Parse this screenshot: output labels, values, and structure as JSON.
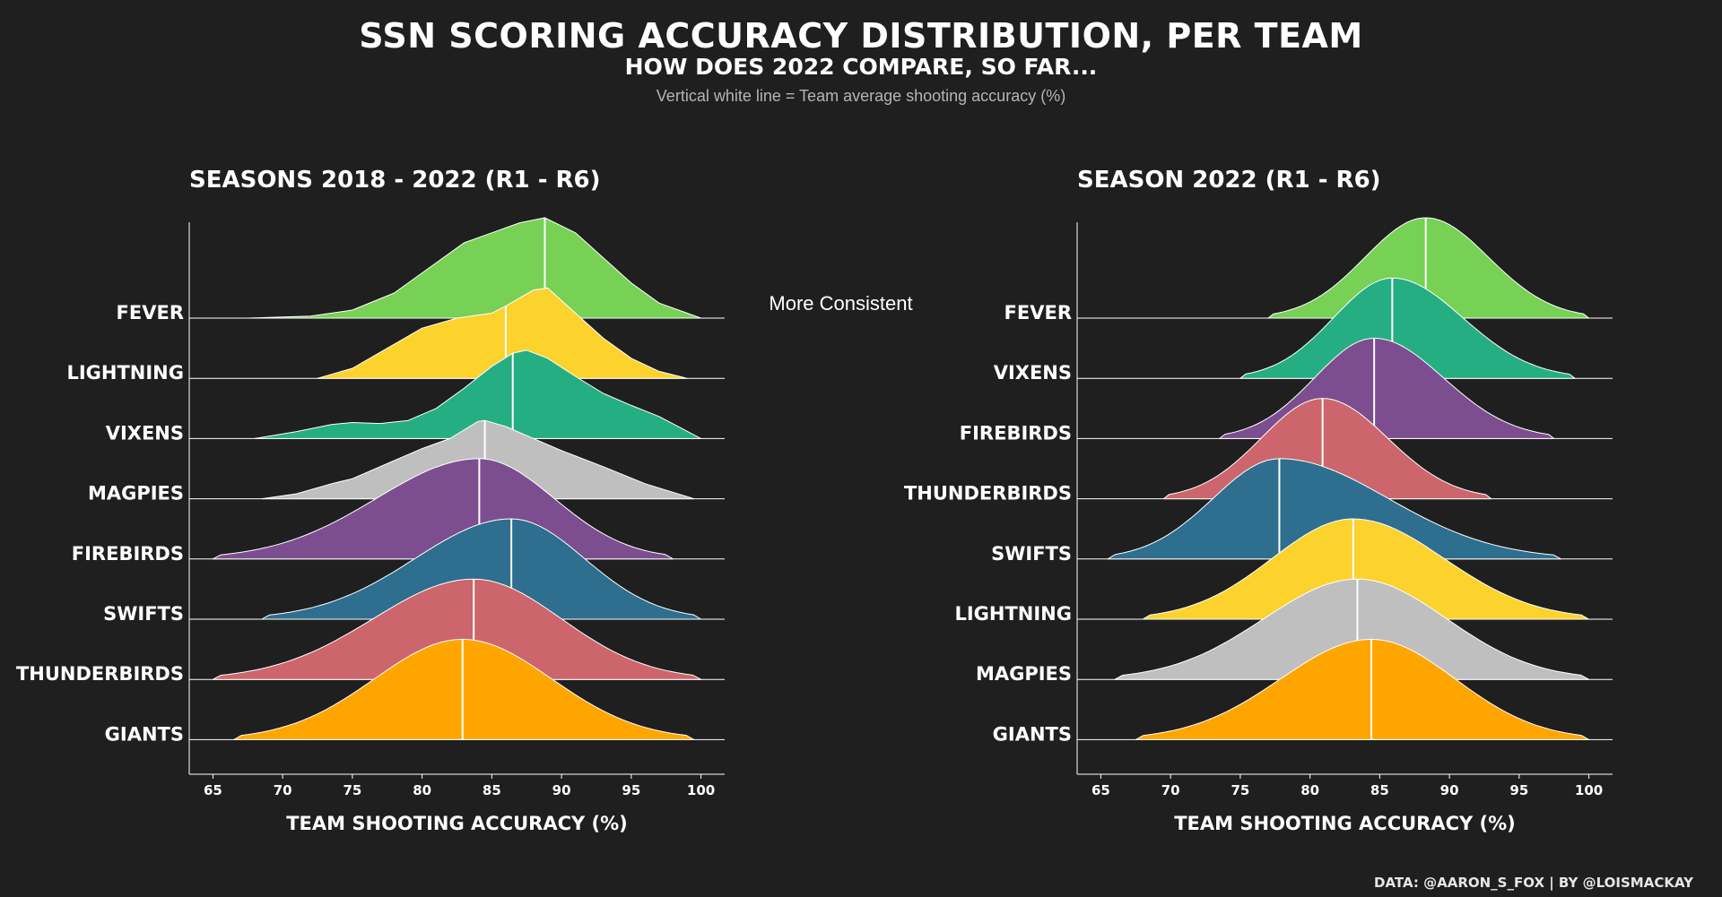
{
  "header": {
    "title": "SSN SCORING ACCURACY DISTRIBUTION, PER TEAM",
    "subtitle": "HOW DOES 2022 COMPARE, SO FAR...",
    "caption": "Vertical white line = Team average shooting accuracy (%)"
  },
  "annotation": "More Consistent",
  "credit": "DATA: @AARON_S_FOX | BY @LOISMACKAY",
  "chart_data": [
    {
      "type": "area",
      "title": "SEASONS 2018 - 2022 (R1 - R6)",
      "xlabel": "TEAM SHOOTING ACCURACY (%)",
      "xlim": [
        63.3,
        101.7
      ],
      "xticks": [
        65,
        70,
        75,
        80,
        85,
        90,
        95,
        100
      ],
      "series": [
        {
          "name": "FEVER",
          "color": "#76d155",
          "mean": 88.8,
          "range": [
            67.5,
            100
          ],
          "x": [
            67.5,
            72,
            75,
            78,
            81,
            83,
            85,
            87,
            88.8,
            91,
            93,
            95,
            97,
            100
          ],
          "y": [
            0,
            0.02,
            0.08,
            0.25,
            0.55,
            0.75,
            0.85,
            0.95,
            1.0,
            0.85,
            0.6,
            0.35,
            0.15,
            0
          ]
        },
        {
          "name": "LIGHTNING",
          "color": "#fcd22d",
          "mean": 86.0,
          "range": [
            72.5,
            99
          ],
          "x": [
            72.5,
            75,
            77.5,
            80,
            82.5,
            85,
            86,
            88,
            89,
            91,
            93,
            95,
            97,
            99
          ],
          "y": [
            0,
            0.1,
            0.3,
            0.5,
            0.6,
            0.65,
            0.72,
            0.88,
            0.9,
            0.65,
            0.4,
            0.2,
            0.07,
            0
          ]
        },
        {
          "name": "VIXENS",
          "color": "#26ae83",
          "mean": 86.5,
          "range": [
            68,
            100
          ],
          "x": [
            68,
            71,
            73.5,
            75,
            77,
            79,
            81,
            83,
            85,
            86.5,
            87.5,
            89,
            91,
            93,
            95,
            97,
            100
          ],
          "y": [
            0,
            0.07,
            0.14,
            0.16,
            0.15,
            0.18,
            0.3,
            0.5,
            0.72,
            0.85,
            0.88,
            0.8,
            0.62,
            0.45,
            0.33,
            0.22,
            0
          ]
        },
        {
          "name": "MAGPIES",
          "color": "#bfbfbf",
          "mean": 84.5,
          "range": [
            68.5,
            99.5
          ],
          "x": [
            68.5,
            71,
            73.5,
            75,
            78,
            80,
            82,
            84,
            84.5,
            86,
            88,
            90,
            93,
            96,
            99.5
          ],
          "y": [
            0,
            0.05,
            0.15,
            0.2,
            0.38,
            0.5,
            0.6,
            0.77,
            0.78,
            0.72,
            0.6,
            0.48,
            0.32,
            0.15,
            0
          ]
        },
        {
          "name": "FIREBIRDS",
          "color": "#7c4e8f",
          "mean": 84.1,
          "range": [
            65,
            98
          ]
        },
        {
          "name": "SWIFTS",
          "color": "#2e6e8e",
          "mean": 86.4,
          "range": [
            68.5,
            100
          ]
        },
        {
          "name": "THUNDERBIRDS",
          "color": "#cc666c",
          "mean": 83.7,
          "range": [
            65,
            100
          ]
        },
        {
          "name": "GIANTS",
          "color": "#ffa500",
          "mean": 82.9,
          "range": [
            66.5,
            99.5
          ]
        }
      ]
    },
    {
      "type": "area",
      "title": "SEASON 2022 (R1 - R6)",
      "xlabel": "TEAM SHOOTING ACCURACY (%)",
      "xlim": [
        63.3,
        101.7
      ],
      "xticks": [
        65,
        70,
        75,
        80,
        85,
        90,
        95,
        100
      ],
      "series": [
        {
          "name": "FEVER",
          "color": "#76d155",
          "mean": 88.3,
          "range": [
            77,
            100
          ]
        },
        {
          "name": "VIXENS",
          "color": "#26ae83",
          "mean": 85.9,
          "range": [
            75,
            99
          ]
        },
        {
          "name": "FIREBIRDS",
          "color": "#7c4e8f",
          "mean": 84.6,
          "range": [
            73.5,
            97.5
          ]
        },
        {
          "name": "THUNDERBIRDS",
          "color": "#cc666c",
          "mean": 80.9,
          "range": [
            69.5,
            93
          ]
        },
        {
          "name": "SWIFTS",
          "color": "#2e6e8e",
          "mean": 77.8,
          "range": [
            65.5,
            98
          ]
        },
        {
          "name": "LIGHTNING",
          "color": "#fcd22d",
          "mean": 83.1,
          "range": [
            68,
            100
          ]
        },
        {
          "name": "MAGPIES",
          "color": "#bfbfbf",
          "mean": 83.4,
          "range": [
            66,
            100
          ]
        },
        {
          "name": "GIANTS",
          "color": "#ffa500",
          "mean": 84.4,
          "range": [
            67.5,
            100
          ]
        }
      ]
    }
  ]
}
